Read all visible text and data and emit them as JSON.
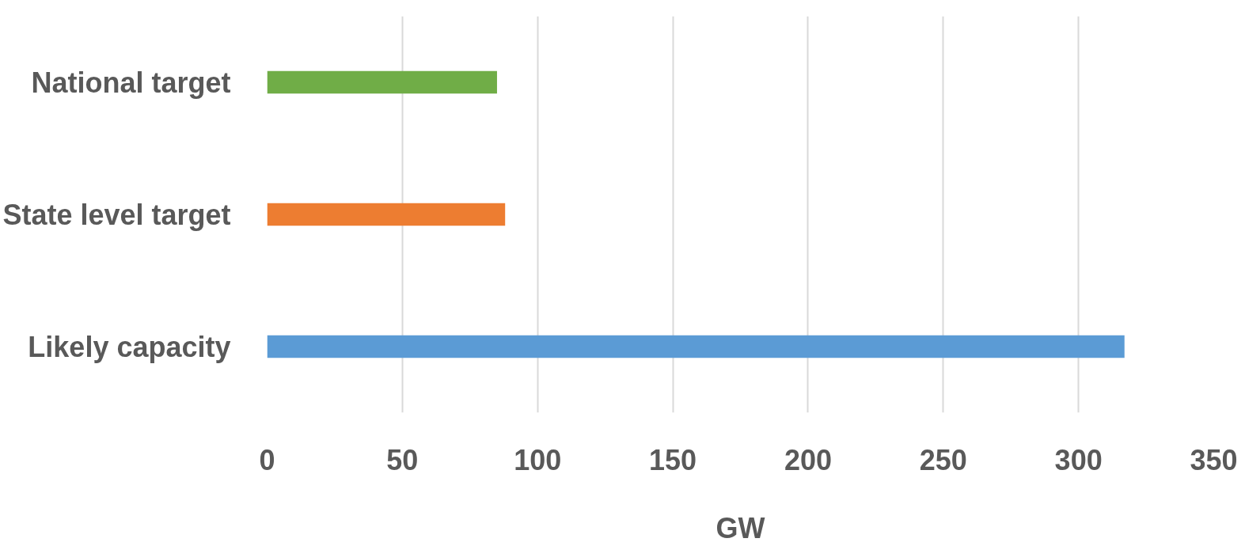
{
  "chart_data": {
    "type": "bar",
    "orientation": "horizontal",
    "xlabel": "GW",
    "categories": [
      "National target",
      "State level target",
      "Likely capacity"
    ],
    "values": [
      85,
      88,
      317
    ],
    "colors": [
      "#70ad47",
      "#ed7d31",
      "#5b9bd5"
    ],
    "xlim": [
      0,
      350
    ],
    "xticks": [
      0,
      50,
      100,
      150,
      200,
      250,
      300,
      350
    ],
    "grid": "x"
  }
}
